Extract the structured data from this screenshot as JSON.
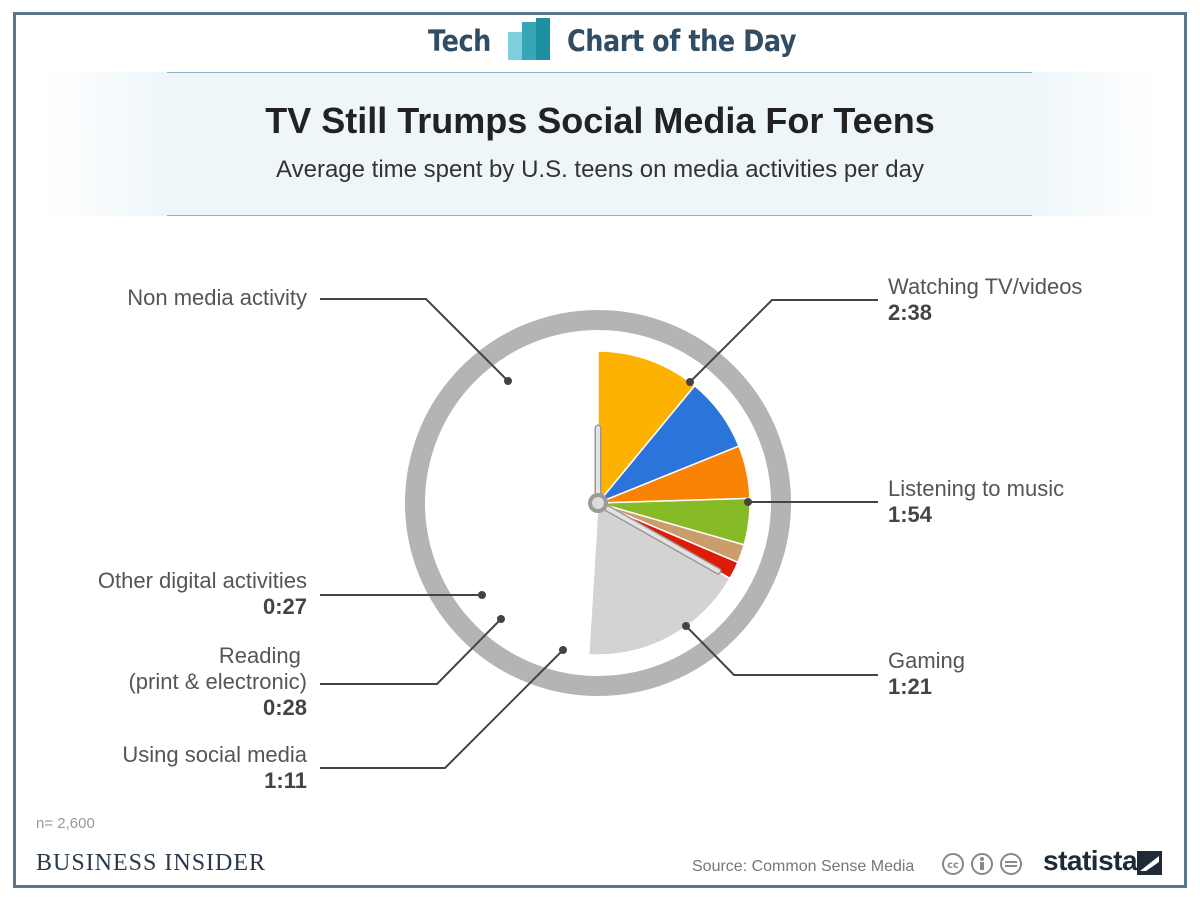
{
  "header": {
    "left_text": "Tech",
    "right_text": "Chart of the Day"
  },
  "chart_data": {
    "type": "pie",
    "title": "TV Still Trumps Social Media For Teens",
    "subtitle": "Average time spent by U.S. teens on media activities per day",
    "total_minutes": 1440,
    "slices": [
      {
        "label": "Watching TV/videos",
        "display": "2:38",
        "minutes": 158,
        "color": "#fdb100"
      },
      {
        "label": "Listening to music",
        "display": "1:54",
        "minutes": 114,
        "color": "#2b75da"
      },
      {
        "label": "Gaming",
        "display": "1:21",
        "minutes": 81,
        "color": "#f88304"
      },
      {
        "label": "Using social media",
        "display": "1:11",
        "minutes": 71,
        "color": "#86bb27"
      },
      {
        "label_lines": [
          "Reading ",
          "(print & electronic)"
        ],
        "display": "0:28",
        "minutes": 28,
        "color": "#cb9d6c"
      },
      {
        "label": "Other digital activities",
        "display": "0:27",
        "minutes": 27,
        "color": "#dd1c07"
      },
      {
        "label": "Non media activity",
        "display": "",
        "minutes": 255,
        "color": "#d3d3d3"
      }
    ],
    "sample_note": "n= 2,600"
  },
  "footer": {
    "publisher": "BUSINESS INSIDER",
    "source": "Source: Common Sense Media",
    "brand": "statista"
  },
  "colors": {
    "header_text": "#2f4e66",
    "ring": "#b4b4b4",
    "leader_line": "#444444",
    "clock_hand": "#d9d9d9"
  }
}
